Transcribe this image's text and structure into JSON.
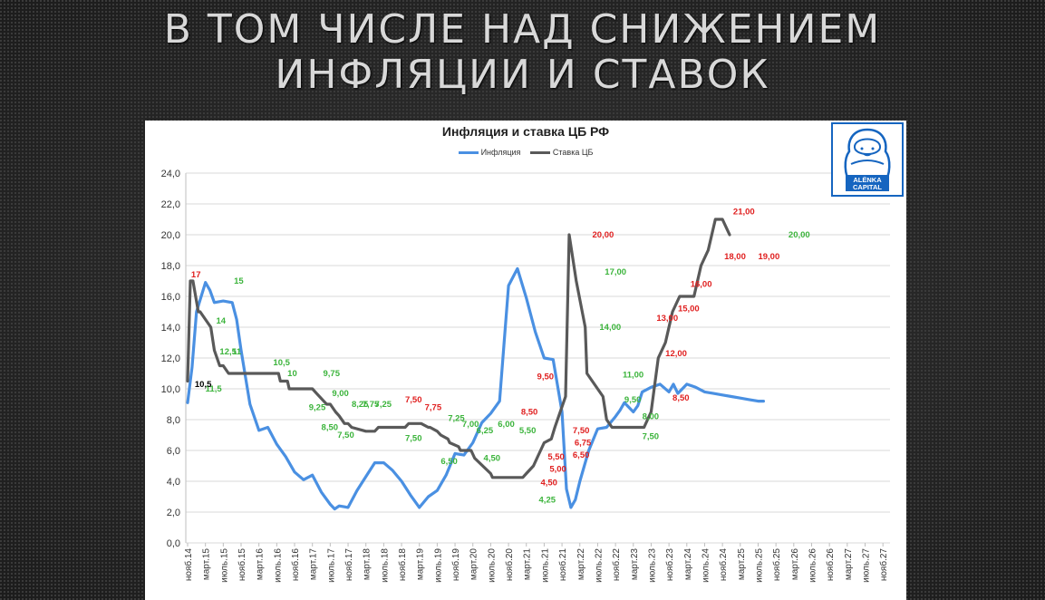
{
  "slide": {
    "title_line1": "В ТОМ ЧИСЛЕ НАД СНИЖЕНИЕМ",
    "title_line2": "ИНФЛЯЦИИ И СТАВОК"
  },
  "logo": {
    "text_line1": "ALЁNKA",
    "text_line2": "CAPITAL",
    "icon": "matryoshka-icon",
    "color": "#1565c0"
  },
  "colors": {
    "inflation": "#4a90e2",
    "rate": "#595959",
    "label_red": "#e02020",
    "label_green": "#3cb43c",
    "label_black": "#000000"
  },
  "chart_data": {
    "type": "line",
    "title": "Инфляция и ставка ЦБ РФ",
    "ylim": [
      0,
      24
    ],
    "yticks": [
      "0,0",
      "2,0",
      "4,0",
      "6,0",
      "8,0",
      "10,0",
      "12,0",
      "14,0",
      "16,0",
      "18,0",
      "20,0",
      "22,0",
      "24,0"
    ],
    "grid": true,
    "legend_placement": "top-center",
    "categories": [
      "нояб.14",
      "март.15",
      "июль.15",
      "нояб.15",
      "март.16",
      "июль.16",
      "нояб.16",
      "март.17",
      "июль.17",
      "нояб.17",
      "март.18",
      "июль.18",
      "нояб.18",
      "март.19",
      "июль.19",
      "нояб.19",
      "март.20",
      "июль.20",
      "нояб.20",
      "март.21",
      "июль.21",
      "нояб.21",
      "март.22",
      "июль.22",
      "нояб.22",
      "март.23",
      "июль.23",
      "нояб.23",
      "март.24",
      "июль.24",
      "нояб.24",
      "март.25",
      "июль.25",
      "нояб.25",
      "март.26",
      "июль.26",
      "нояб.26",
      "март.27",
      "июль.27",
      "нояб.27"
    ],
    "series": [
      {
        "name": "Инфляция",
        "x": [
          0,
          0.25,
          0.5,
          1,
          1.25,
          1.5,
          2,
          2.5,
          2.75,
          3,
          3.5,
          4,
          4.5,
          5,
          5.5,
          6,
          6.5,
          7,
          7.5,
          8,
          8.25,
          8.5,
          9,
          9.5,
          10,
          10.5,
          11,
          11.5,
          12,
          12.5,
          13,
          13.5,
          14,
          14.5,
          15,
          15.5,
          16,
          16.5,
          17,
          17.5,
          18,
          18.5,
          19,
          19.5,
          20,
          20.5,
          21,
          21.25,
          21.5,
          21.75,
          22,
          22.25,
          22.5,
          23,
          23.5,
          24,
          24.25,
          24.5,
          25,
          25.25,
          25.5,
          26,
          26.5,
          27,
          27.25,
          27.5,
          28,
          28.5,
          29,
          29.5,
          30,
          30.5,
          31,
          31.5,
          32,
          32.3
        ],
        "values": [
          9.1,
          11.4,
          15.0,
          16.9,
          16.4,
          15.6,
          15.7,
          15.6,
          14.5,
          12.5,
          9.0,
          7.3,
          7.5,
          6.4,
          5.6,
          4.6,
          4.1,
          4.4,
          3.3,
          2.5,
          2.2,
          2.4,
          2.3,
          3.4,
          4.3,
          5.2,
          5.2,
          4.7,
          4.0,
          3.1,
          2.3,
          3.0,
          3.4,
          4.4,
          5.8,
          5.7,
          6.5,
          7.8,
          8.4,
          9.2,
          16.7,
          17.8,
          15.9,
          13.7,
          12.0,
          11.9,
          8.5,
          3.5,
          2.3,
          2.8,
          4.0,
          5.0,
          6.0,
          7.4,
          7.5,
          8.2,
          8.6,
          9.1,
          8.5,
          8.9,
          9.8,
          10.1,
          10.3,
          9.8,
          10.3,
          9.7,
          10.3,
          10.1,
          9.8,
          9.7,
          9.6,
          9.5,
          9.4,
          9.3,
          9.2,
          9.2
        ]
      },
      {
        "name": "Ставка ЦБ",
        "x": [
          0,
          0.15,
          0.3,
          0.6,
          0.7,
          1.3,
          1.5,
          1.8,
          2.0,
          2.3,
          2.5,
          5.1,
          5.2,
          5.6,
          5.7,
          7.0,
          7.2,
          7.6,
          7.8,
          8.0,
          8.3,
          8.5,
          8.8,
          9.0,
          9.2,
          10.0,
          10.1,
          10.5,
          10.7,
          12.2,
          12.4,
          12.6,
          12.8,
          13.0,
          13.1,
          13.5,
          13.6,
          14.0,
          14.2,
          14.6,
          14.7,
          15.2,
          15.3,
          15.9,
          16.1,
          17.0,
          17.1,
          17.4,
          17.6,
          18.3,
          18.5,
          18.8,
          19.0,
          19.4,
          19.6,
          20.0,
          20.4,
          20.6,
          20.9,
          21.2,
          21.4,
          21.8,
          22.3,
          22.4,
          23.3,
          23.5,
          23.8,
          24.2,
          24.4,
          25.0,
          25.6,
          26.0,
          26.4,
          26.8,
          27.2,
          27.6,
          28.0,
          28.4,
          28.8,
          29.2,
          29.6,
          30.0,
          30.4
        ],
        "values": [
          10.5,
          17.0,
          17.0,
          15.0,
          15.0,
          14.0,
          12.5,
          11.5,
          11.5,
          11.0,
          11.0,
          11.0,
          10.5,
          10.5,
          10.0,
          10.0,
          9.75,
          9.25,
          9.0,
          9.0,
          8.5,
          8.25,
          7.75,
          7.75,
          7.5,
          7.25,
          7.25,
          7.25,
          7.5,
          7.5,
          7.75,
          7.75,
          7.75,
          7.75,
          7.75,
          7.5,
          7.5,
          7.25,
          7.0,
          6.75,
          6.5,
          6.25,
          6.0,
          6.0,
          5.5,
          4.5,
          4.25,
          4.25,
          4.25,
          4.25,
          4.25,
          4.25,
          4.5,
          5.0,
          5.5,
          6.5,
          6.75,
          7.5,
          8.5,
          9.5,
          20.0,
          17.0,
          14.0,
          11.0,
          9.5,
          8.0,
          7.5,
          7.5,
          7.5,
          7.5,
          7.5,
          8.5,
          12.0,
          13.0,
          15.0,
          16.0,
          16.0,
          16.0,
          18.0,
          19.0,
          21.0,
          21.0,
          20.0
        ]
      }
    ],
    "labels": [
      {
        "text": "17",
        "x": 0.2,
        "y": 17.4,
        "color": "red"
      },
      {
        "text": "15",
        "x": 2.6,
        "y": 17.0,
        "color": "green"
      },
      {
        "text": "14",
        "x": 1.6,
        "y": 14.4,
        "color": "green"
      },
      {
        "text": "12,5",
        "x": 1.8,
        "y": 12.4,
        "color": "green"
      },
      {
        "text": "11",
        "x": 2.5,
        "y": 12.4,
        "color": "green"
      },
      {
        "text": "11,5",
        "x": 1.0,
        "y": 10.0,
        "color": "green"
      },
      {
        "text": "10,5",
        "x": 0.4,
        "y": 10.3,
        "color": "black"
      },
      {
        "text": "10,5",
        "x": 4.8,
        "y": 11.7,
        "color": "green"
      },
      {
        "text": "10",
        "x": 5.6,
        "y": 11.0,
        "color": "green"
      },
      {
        "text": "9,75",
        "x": 7.6,
        "y": 11.0,
        "color": "green"
      },
      {
        "text": "9,00",
        "x": 8.1,
        "y": 9.7,
        "color": "green"
      },
      {
        "text": "9,25",
        "x": 6.8,
        "y": 8.8,
        "color": "green"
      },
      {
        "text": "8,25",
        "x": 9.2,
        "y": 9.0,
        "color": "green"
      },
      {
        "text": "7,75",
        "x": 9.8,
        "y": 9.0,
        "color": "green"
      },
      {
        "text": "7,25",
        "x": 10.5,
        "y": 9.0,
        "color": "green"
      },
      {
        "text": "8,50",
        "x": 7.5,
        "y": 7.5,
        "color": "green"
      },
      {
        "text": "7,50",
        "x": 8.4,
        "y": 7.0,
        "color": "green"
      },
      {
        "text": "7,50",
        "x": 12.2,
        "y": 9.3,
        "color": "red"
      },
      {
        "text": "7,75",
        "x": 13.3,
        "y": 8.8,
        "color": "red"
      },
      {
        "text": "7,50",
        "x": 12.2,
        "y": 6.8,
        "color": "green"
      },
      {
        "text": "7,25",
        "x": 14.6,
        "y": 8.1,
        "color": "green"
      },
      {
        "text": "7,00",
        "x": 15.4,
        "y": 7.7,
        "color": "green"
      },
      {
        "text": "6,25",
        "x": 16.2,
        "y": 7.3,
        "color": "green"
      },
      {
        "text": "6,00",
        "x": 17.4,
        "y": 7.7,
        "color": "green"
      },
      {
        "text": "5,50",
        "x": 18.6,
        "y": 7.3,
        "color": "green"
      },
      {
        "text": "6,50",
        "x": 14.2,
        "y": 5.3,
        "color": "green"
      },
      {
        "text": "4,50",
        "x": 16.6,
        "y": 5.5,
        "color": "green"
      },
      {
        "text": "4,25",
        "x": 19.7,
        "y": 2.8,
        "color": "green"
      },
      {
        "text": "4,50",
        "x": 19.8,
        "y": 3.9,
        "color": "red"
      },
      {
        "text": "5,00",
        "x": 20.3,
        "y": 4.8,
        "color": "red"
      },
      {
        "text": "5,50",
        "x": 20.2,
        "y": 5.6,
        "color": "red"
      },
      {
        "text": "6,50",
        "x": 21.6,
        "y": 5.7,
        "color": "red"
      },
      {
        "text": "6,75",
        "x": 21.7,
        "y": 6.5,
        "color": "red"
      },
      {
        "text": "7,50",
        "x": 21.6,
        "y": 7.3,
        "color": "red"
      },
      {
        "text": "8,50",
        "x": 18.7,
        "y": 8.5,
        "color": "red"
      },
      {
        "text": "9,50",
        "x": 19.6,
        "y": 10.8,
        "color": "red"
      },
      {
        "text": "20,00",
        "x": 22.7,
        "y": 20.0,
        "color": "red"
      },
      {
        "text": "17,00",
        "x": 23.4,
        "y": 17.6,
        "color": "green"
      },
      {
        "text": "14,00",
        "x": 23.1,
        "y": 14.0,
        "color": "green"
      },
      {
        "text": "11,00",
        "x": 24.4,
        "y": 10.9,
        "color": "green"
      },
      {
        "text": "9,50",
        "x": 24.5,
        "y": 9.3,
        "color": "green"
      },
      {
        "text": "8,00",
        "x": 25.5,
        "y": 8.2,
        "color": "green"
      },
      {
        "text": "7,50",
        "x": 25.5,
        "y": 6.9,
        "color": "green"
      },
      {
        "text": "8,50",
        "x": 27.2,
        "y": 9.4,
        "color": "red"
      },
      {
        "text": "12,00",
        "x": 26.8,
        "y": 12.3,
        "color": "red"
      },
      {
        "text": "13,00",
        "x": 26.3,
        "y": 14.6,
        "color": "red"
      },
      {
        "text": "15,00",
        "x": 27.5,
        "y": 15.2,
        "color": "red"
      },
      {
        "text": "16,00",
        "x": 28.2,
        "y": 16.8,
        "color": "red"
      },
      {
        "text": "18,00",
        "x": 30.1,
        "y": 18.6,
        "color": "red"
      },
      {
        "text": "19,00",
        "x": 32.0,
        "y": 18.6,
        "color": "red"
      },
      {
        "text": "21,00",
        "x": 30.6,
        "y": 21.5,
        "color": "red"
      },
      {
        "text": "20,00",
        "x": 33.7,
        "y": 20.0,
        "color": "green"
      }
    ]
  }
}
